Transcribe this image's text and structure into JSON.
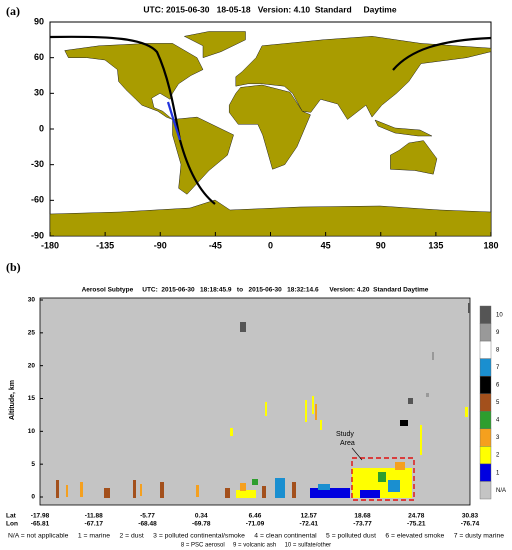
{
  "panel_a": {
    "label": "(a)",
    "title": "UTC: 2015-06-30   18-05-18   Version: 4.10  Standard     Daytime",
    "y_ticks": [
      "90",
      "60",
      "30",
      "0",
      "-30",
      "-60",
      "-90"
    ],
    "x_ticks": [
      "-180",
      "-135",
      "-90",
      "-45",
      "0",
      "45",
      "90",
      "135",
      "180"
    ]
  },
  "panel_b": {
    "label": "(b)",
    "title": "Aerosol Subtype     UTC:  2015-06-30   18:18:45.9   to   2015-06-30   18:32:14.6      Version: 4.20  Standard Daytime",
    "y_axis_label": "Altitude, km",
    "y_ticks": [
      "0",
      "5",
      "10",
      "15",
      "20",
      "25",
      "30"
    ],
    "row_labels": [
      "Lat",
      "Lon"
    ],
    "lat": [
      "-17.98",
      "-11.88",
      "-5.77",
      "0.34",
      "6.46",
      "12.57",
      "18.68",
      "24.78",
      "30.83"
    ],
    "lon": [
      "-65.81",
      "-67.17",
      "-68.48",
      "-69.78",
      "-71.09",
      "-72.41",
      "-73.77",
      "-75.21",
      "-76.74"
    ],
    "colorbar": [
      "10",
      "9",
      "8",
      "7",
      "6",
      "5",
      "4",
      "3",
      "2",
      "1",
      "N/A"
    ],
    "annotation": [
      "Study",
      "Area"
    ],
    "legend_lines": [
      "N/A = not applicable     1 = marine     2 = dust     3 = polluted continental/smoke     4 = clean continental     5 = polluted dust     6 = elevated smoke     7 = dusty marine",
      "8 = PSC aerosol     9 = volcanic ash     10 = sulfate/other"
    ]
  }
}
